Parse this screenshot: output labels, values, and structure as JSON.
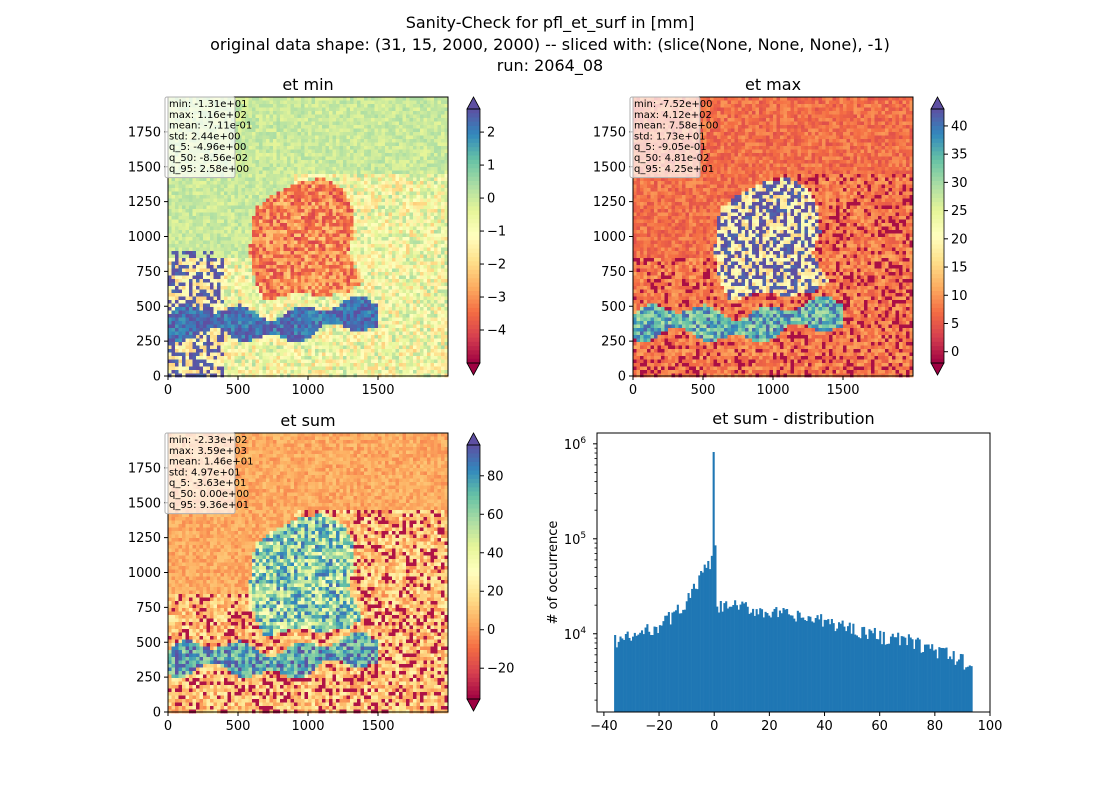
{
  "figure": {
    "suptitle_lines": [
      "Sanity-Check for pfl_et_surf in [mm]",
      "original data shape: (31, 15, 2000, 2000) -- sliced with: (slice(None, None, None), -1)",
      "run: 2064_08"
    ]
  },
  "chart_data": [
    {
      "type": "heatmap",
      "title": "et min",
      "xlim": [
        0,
        2000
      ],
      "ylim": [
        0,
        2000
      ],
      "xticks": [
        0,
        500,
        1000,
        1500
      ],
      "yticks": [
        0,
        250,
        500,
        750,
        1000,
        1250,
        1500,
        1750
      ],
      "colormap": "Spectral",
      "colorbar": {
        "vmin": -5,
        "vmax": 2.7,
        "ticks": [
          2,
          1,
          0,
          -1,
          -2,
          -3,
          -4
        ],
        "tick_labels": [
          "2",
          "1",
          "0",
          "−1",
          "−2",
          "−3",
          "−4"
        ],
        "extend": "both"
      },
      "stats": [
        "min: -1.31e+01",
        "max: 1.16e+02",
        "mean: -7.11e-01",
        "std: 2.44e+00",
        "q_5: -4.96e+00",
        "q_50: -8.56e-02",
        "q_95: 2.58e+00"
      ]
    },
    {
      "type": "heatmap",
      "title": "et max",
      "xlim": [
        0,
        2000
      ],
      "ylim": [
        0,
        2000
      ],
      "xticks": [
        0,
        500,
        1000,
        1500
      ],
      "yticks": [
        0,
        250,
        500,
        750,
        1000,
        1250,
        1500,
        1750
      ],
      "colormap": "Spectral",
      "colorbar": {
        "vmin": -2,
        "vmax": 43,
        "ticks": [
          40,
          35,
          30,
          25,
          20,
          15,
          10,
          5,
          0
        ],
        "tick_labels": [
          "40",
          "35",
          "30",
          "25",
          "20",
          "15",
          "10",
          "5",
          "0"
        ],
        "extend": "both"
      },
      "stats": [
        "min: -7.52e+00",
        "max: 4.12e+02",
        "mean: 7.58e+00",
        "std: 1.73e+01",
        "q_5: -9.05e-01",
        "q_50: 4.81e-02",
        "q_95: 4.25e+01"
      ]
    },
    {
      "type": "heatmap",
      "title": "et sum",
      "xlim": [
        0,
        2000
      ],
      "ylim": [
        0,
        2000
      ],
      "xticks": [
        0,
        500,
        1000,
        1500
      ],
      "yticks": [
        0,
        250,
        500,
        750,
        1000,
        1250,
        1500,
        1750
      ],
      "colormap": "Spectral",
      "colorbar": {
        "vmin": -36,
        "vmax": 96,
        "ticks": [
          80,
          60,
          40,
          20,
          0,
          -20
        ],
        "tick_labels": [
          "80",
          "60",
          "40",
          "20",
          "0",
          "−20"
        ],
        "extend": "both"
      },
      "stats": [
        "min: -2.33e+02",
        "max: 3.59e+03",
        "mean: 1.46e+01",
        "std: 4.97e+01",
        "q_5: -3.63e+01",
        "q_50: 0.00e+00",
        "q_95: 9.36e+01"
      ]
    },
    {
      "type": "bar",
      "title": "et sum - distribution",
      "ylabel": "# of occurrence",
      "xlabel": "",
      "yscale": "log",
      "xlim": [
        -42.5,
        100
      ],
      "ylim": [
        1500,
        1300000
      ],
      "xticks": [
        -40,
        -20,
        0,
        20,
        40,
        60,
        80,
        100
      ],
      "xtick_labels": [
        "−40",
        "−20",
        "0",
        "20",
        "40",
        "60",
        "80",
        "100"
      ],
      "ytick_labels": [
        {
          "value": 10000,
          "base": "10",
          "exp": "4"
        },
        {
          "value": 100000,
          "base": "10",
          "exp": "5"
        },
        {
          "value": 1000000,
          "base": "10",
          "exp": "6"
        }
      ],
      "color": "#1f77b4",
      "bins": {
        "start": -36.3,
        "end": 93.6,
        "count": 200
      },
      "counts_profile": [
        [
          -36.3,
          8500
        ],
        [
          -30,
          9200
        ],
        [
          -25,
          10500
        ],
        [
          -20,
          12500
        ],
        [
          -15,
          15500
        ],
        [
          -10,
          22000
        ],
        [
          -7,
          30000
        ],
        [
          -5,
          40000
        ],
        [
          -3,
          48000
        ],
        [
          -1.5,
          55000
        ],
        [
          -0.7,
          60000
        ],
        [
          0,
          820000
        ],
        [
          0.65,
          18000
        ],
        [
          5,
          20000
        ],
        [
          10,
          19000
        ],
        [
          20,
          17000
        ],
        [
          30,
          15000
        ],
        [
          40,
          13500
        ],
        [
          50,
          11500
        ],
        [
          60,
          9500
        ],
        [
          70,
          8500
        ],
        [
          80,
          6800
        ],
        [
          90,
          5200
        ],
        [
          93.6,
          4500
        ]
      ]
    }
  ]
}
